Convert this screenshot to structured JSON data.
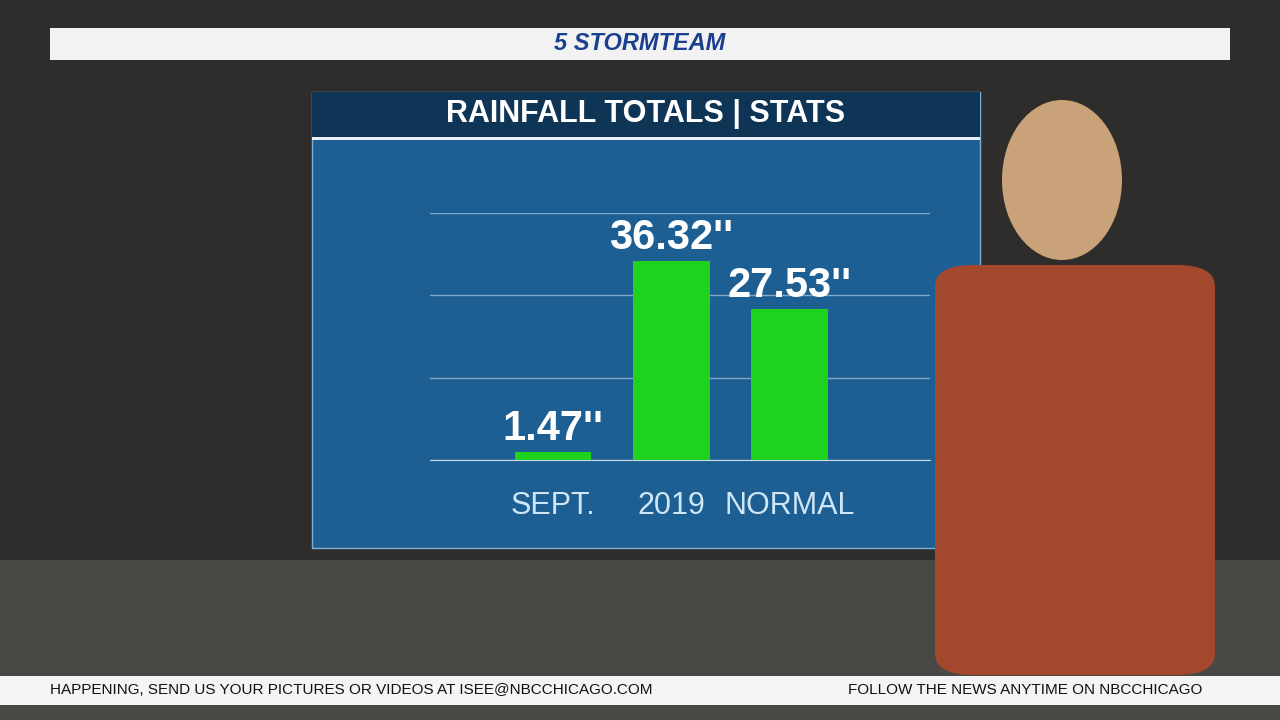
{
  "branding": "5 STORMTEAM",
  "ticker": [
    "HAPPENING, SEND US YOUR PICTURES OR VIDEOS AT ISEE@NBCCHICAGO.COM",
    "FOLLOW THE NEWS ANYTIME ON NBCCHICAGO"
  ],
  "chart_data": {
    "type": "bar",
    "title": "RAINFALL TOTALS | STATS",
    "categories": [
      "SEPT.",
      "2019",
      "NORMAL"
    ],
    "values": [
      1.47,
      36.32,
      27.53
    ],
    "value_labels": [
      "1.47''",
      "36.32''",
      "27.53''"
    ],
    "data_labels": true,
    "color": "#1ed21e",
    "ylim": [
      0,
      45
    ],
    "yticks": [
      0,
      15,
      30,
      45
    ],
    "grid": true,
    "tick_labels": "x"
  }
}
